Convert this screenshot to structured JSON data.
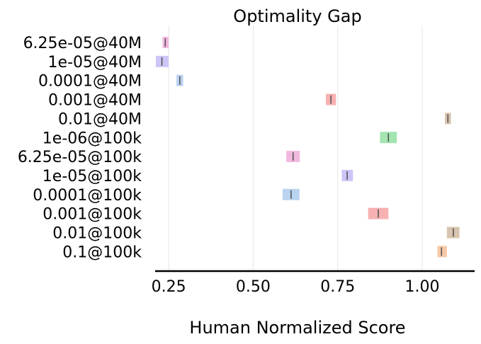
{
  "chart_data": {
    "type": "interval",
    "title": "Optimality Gap",
    "xlabel": "Human Normalized Score",
    "ylabel": "",
    "xlim": [
      0.21,
      1.155
    ],
    "xticks": [
      0.25,
      0.5,
      0.75,
      1.0
    ],
    "xtick_labels": [
      "0.25",
      "0.50",
      "0.75",
      "1.00"
    ],
    "grid": "vertical",
    "categories": [
      "6.25e-05@40M",
      "1e-05@40M",
      "0.0001@40M",
      "0.001@40M",
      "0.01@40M",
      "1e-06@100k",
      "6.25e-05@100k",
      "1e-05@100k",
      "0.0001@100k",
      "0.001@100k",
      "0.01@100k",
      "0.1@100k"
    ],
    "intervals": [
      {
        "low": 0.232,
        "high": 0.25,
        "point": 0.24,
        "color": "#f2b8e0"
      },
      {
        "low": 0.212,
        "high": 0.25,
        "point": 0.23,
        "color": "#cdc5f7"
      },
      {
        "low": 0.273,
        "high": 0.293,
        "point": 0.283,
        "color": "#b9d3f0"
      },
      {
        "low": 0.715,
        "high": 0.745,
        "point": 0.73,
        "color": "#f7b1b1"
      },
      {
        "low": 1.067,
        "high": 1.085,
        "point": 1.076,
        "color": "#d8c4ae"
      },
      {
        "low": 0.875,
        "high": 0.925,
        "point": 0.9,
        "color": "#a3e4b0"
      },
      {
        "low": 0.598,
        "high": 0.638,
        "point": 0.618,
        "color": "#f2b8e0"
      },
      {
        "low": 0.762,
        "high": 0.795,
        "point": 0.778,
        "color": "#cdc5f7"
      },
      {
        "low": 0.587,
        "high": 0.637,
        "point": 0.612,
        "color": "#b9d3f0"
      },
      {
        "low": 0.84,
        "high": 0.9,
        "point": 0.87,
        "color": "#f7b1b1"
      },
      {
        "low": 1.073,
        "high": 1.11,
        "point": 1.092,
        "color": "#d8c4ae"
      },
      {
        "low": 1.045,
        "high": 1.073,
        "point": 1.057,
        "color": "#f7c9a6"
      }
    ],
    "point_marker_color": "#555555"
  }
}
